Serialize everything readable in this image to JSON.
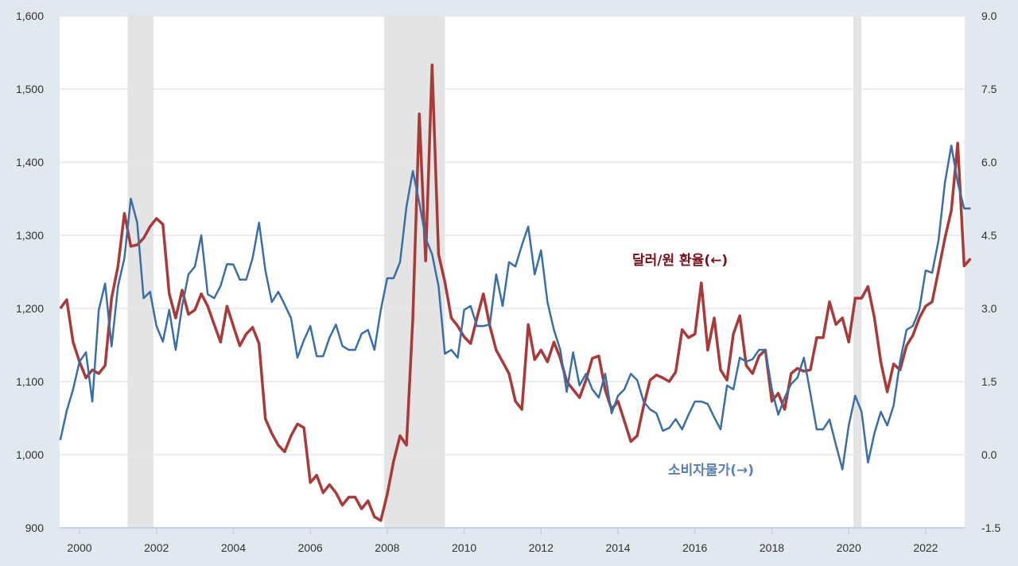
{
  "chart_data": {
    "type": "line",
    "title": "",
    "x_range": [
      1999.5,
      2023.2
    ],
    "left_axis": {
      "range": [
        900,
        1600
      ],
      "ticks": [
        "900",
        "1,000",
        "1,100",
        "1,200",
        "1,300",
        "1,400",
        "1,500",
        "1,600"
      ],
      "tick_values": [
        900,
        1000,
        1100,
        1200,
        1300,
        1400,
        1500,
        1600
      ]
    },
    "right_axis": {
      "range": [
        -1.5,
        9.0
      ],
      "ticks": [
        "-1.5",
        "0.0",
        "1.5",
        "3.0",
        "4.5",
        "6.0",
        "7.5",
        "9.0"
      ],
      "tick_values": [
        -1.5,
        0,
        1.5,
        3,
        4.5,
        6,
        7.5,
        9
      ]
    },
    "x_ticks": [
      "2000",
      "2002",
      "2004",
      "2006",
      "2008",
      "2010",
      "2012",
      "2014",
      "2016",
      "2018",
      "2020",
      "2022"
    ],
    "x_tick_values": [
      2000,
      2002,
      2004,
      2006,
      2008,
      2010,
      2012,
      2014,
      2016,
      2018,
      2020,
      2022
    ],
    "grid": true,
    "recessions": [
      [
        2001.25,
        2001.92
      ],
      [
        2007.92,
        2009.5
      ],
      [
        2020.12,
        2020.33
      ]
    ],
    "start_year": 1999.5,
    "step_years": 0.16667,
    "series": [
      {
        "name": "달러/원 환율(←)",
        "axis": "left",
        "color": "#a83a3a",
        "label_color": "#7a0f1a",
        "values": [
          1200,
          1212,
          1154,
          1127,
          1105,
          1116,
          1111,
          1122,
          1214,
          1258,
          1330,
          1285,
          1287,
          1296,
          1312,
          1323,
          1315,
          1220,
          1187,
          1225,
          1192,
          1198,
          1220,
          1203,
          1178,
          1154,
          1203,
          1176,
          1149,
          1165,
          1174,
          1152,
          1049,
          1029,
          1013,
          1004,
          1026,
          1042,
          1037,
          962,
          972,
          948,
          959,
          948,
          931,
          942,
          942,
          926,
          937,
          915,
          910,
          946,
          991,
          1026,
          1013,
          1187,
          1466,
          1265,
          1533,
          1274,
          1236,
          1187,
          1176,
          1161,
          1152,
          1187,
          1220,
          1176,
          1143,
          1127,
          1111,
          1073,
          1062,
          1178,
          1130,
          1143,
          1127,
          1154,
          1132,
          1100,
          1089,
          1078,
          1102,
          1132,
          1135,
          1089,
          1062,
          1073,
          1046,
          1018,
          1026,
          1067,
          1102,
          1109,
          1105,
          1100,
          1113,
          1171,
          1160,
          1165,
          1235,
          1143,
          1187,
          1116,
          1102,
          1165,
          1190,
          1122,
          1111,
          1135,
          1143,
          1073,
          1084,
          1062,
          1111,
          1118,
          1114,
          1116,
          1160,
          1160,
          1209,
          1178,
          1187,
          1154,
          1214,
          1214,
          1230,
          1187,
          1127,
          1086,
          1124,
          1116,
          1149,
          1163,
          1187,
          1203,
          1209,
          1252,
          1296,
          1334,
          1426,
          1258,
          1268
        ]
      },
      {
        "name": "소비자물가(→)",
        "axis": "right",
        "color": "#3a6ea5",
        "label_color": "#5a80b5",
        "values": [
          0.3,
          0.9,
          1.34,
          1.91,
          2.1,
          1.09,
          2.97,
          3.51,
          2.22,
          3.46,
          4.03,
          5.25,
          4.76,
          3.21,
          3.34,
          2.64,
          2.32,
          2.97,
          2.15,
          3.05,
          3.7,
          3.86,
          4.5,
          3.29,
          3.21,
          3.46,
          3.91,
          3.9,
          3.59,
          3.59,
          4.03,
          4.76,
          3.78,
          3.13,
          3.34,
          3.08,
          2.8,
          1.99,
          2.35,
          2.64,
          2.02,
          2.02,
          2.4,
          2.67,
          2.23,
          2.15,
          2.15,
          2.48,
          2.56,
          2.15,
          2.97,
          3.62,
          3.62,
          3.95,
          5.09,
          5.82,
          5.17,
          4.44,
          4.11,
          3.46,
          2.07,
          2.15,
          1.99,
          2.97,
          3.05,
          2.64,
          2.64,
          2.67,
          3.7,
          3.05,
          3.95,
          3.86,
          4.3,
          4.68,
          3.7,
          4.19,
          3.13,
          2.56,
          2.15,
          1.29,
          2.1,
          1.42,
          1.66,
          1.34,
          1.17,
          1.66,
          0.85,
          1.21,
          1.34,
          1.66,
          1.53,
          1.09,
          0.93,
          0.85,
          0.49,
          0.55,
          0.73,
          0.52,
          0.82,
          1.09,
          1.09,
          1.04,
          0.77,
          0.52,
          1.42,
          1.34,
          1.99,
          1.91,
          1.96,
          2.15,
          2.15,
          1.34,
          0.82,
          1.17,
          1.45,
          1.58,
          1.99,
          1.26,
          0.52,
          0.52,
          0.72,
          0.2,
          -0.3,
          0.6,
          1.21,
          0.88,
          -0.16,
          0.44,
          0.88,
          0.6,
          1.01,
          1.91,
          2.56,
          2.64,
          2.97,
          3.78,
          3.73,
          4.4,
          5.58,
          6.34,
          5.58,
          5.05,
          5.05
        ]
      }
    ]
  }
}
